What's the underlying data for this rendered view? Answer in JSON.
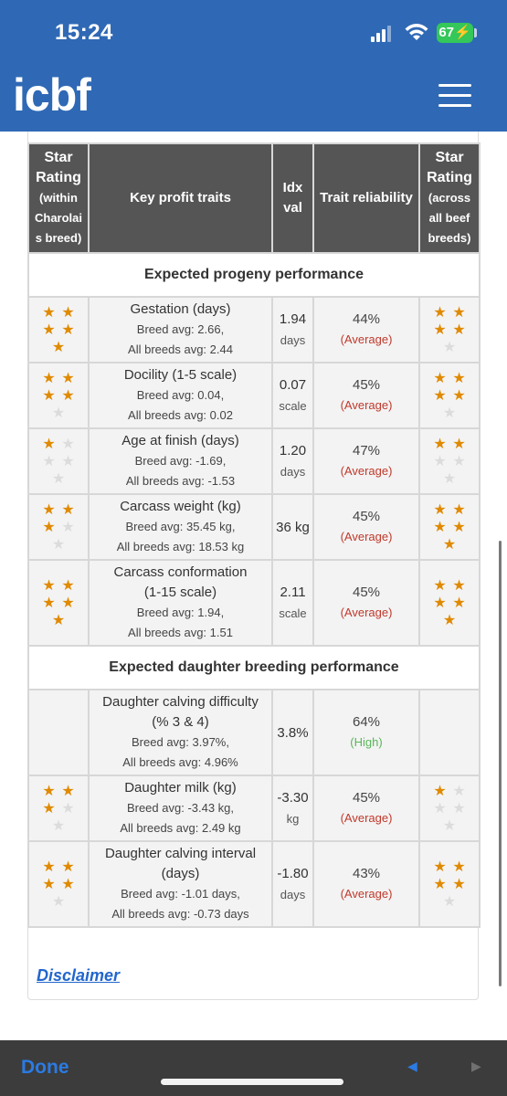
{
  "status_bar": {
    "time": "15:24",
    "battery": "67"
  },
  "header": {
    "logo": "icbf"
  },
  "table": {
    "headers": {
      "star_within_line1": "Star",
      "star_within_line2": "Rating",
      "star_within_line3": "(within",
      "star_within_line4": "Charolai",
      "star_within_line5": "s breed)",
      "traits": "Key profit traits",
      "idx_line1": "Idx",
      "idx_line2": "val",
      "reliability": "Trait reliability",
      "star_across_line1": "Star",
      "star_across_line2": "Rating",
      "star_across_line3": "(across",
      "star_across_line4": "all beef",
      "star_across_line5": "breeds)"
    },
    "sections": [
      {
        "title": "Expected progeny performance",
        "rows": [
          {
            "name": "Gestation (days)",
            "name2": "",
            "breed_avg": "Breed avg: 2.66,",
            "all_avg": "All breeds avg: 2.44",
            "idx": "1.94",
            "unit": "days",
            "pct": "44%",
            "rel": "(Average)",
            "within_stars": 5,
            "across_stars": 4
          },
          {
            "name": "Docility (1-5 scale)",
            "name2": "",
            "breed_avg": "Breed avg: 0.04,",
            "all_avg": "All breeds avg: 0.02",
            "idx": "0.07",
            "unit": "scale",
            "pct": "45%",
            "rel": "(Average)",
            "within_stars": 4,
            "across_stars": 4
          },
          {
            "name": "Age at finish (days)",
            "name2": "",
            "breed_avg": "Breed avg: -1.69,",
            "all_avg": "All breeds avg: -1.53",
            "idx": "1.20",
            "unit": "days",
            "pct": "47%",
            "rel": "(Average)",
            "within_stars": 1,
            "across_stars": 2
          },
          {
            "name": "Carcass weight (kg)",
            "name2": "",
            "breed_avg": "Breed avg: 35.45 kg,",
            "all_avg": "All breeds avg: 18.53 kg",
            "idx": "36 kg",
            "unit": "",
            "pct": "45%",
            "rel": "(Average)",
            "within_stars": 3,
            "across_stars": 5
          },
          {
            "name": "Carcass conformation",
            "name2": "(1-15 scale)",
            "breed_avg": "Breed avg: 1.94,",
            "all_avg": "All breeds avg: 1.51",
            "idx": "2.11",
            "unit": "scale",
            "pct": "45%",
            "rel": "(Average)",
            "within_stars": 5,
            "across_stars": 5
          }
        ]
      },
      {
        "title": "Expected daughter breeding performance",
        "rows": [
          {
            "name": "Daughter calving difficulty",
            "name2": "(% 3 & 4)",
            "breed_avg": "Breed avg: 3.97%,",
            "all_avg": "All breeds avg: 4.96%",
            "idx": "3.8%",
            "unit": "",
            "pct": "64%",
            "rel": "(High)",
            "within_stars": 0,
            "across_stars": 0
          },
          {
            "name": "Daughter milk (kg)",
            "name2": "",
            "breed_avg": "Breed avg: -3.43 kg,",
            "all_avg": "All breeds avg: 2.49 kg",
            "idx": "-3.30",
            "unit": "kg",
            "pct": "45%",
            "rel": "(Average)",
            "within_stars": 3,
            "across_stars": 1
          },
          {
            "name": "Daughter calving interval",
            "name2": "(days)",
            "breed_avg": "Breed avg: -1.01 days,",
            "all_avg": "All breeds avg: -0.73 days",
            "idx": "-1.80",
            "unit": "days",
            "pct": "43%",
            "rel": "(Average)",
            "within_stars": 4,
            "across_stars": 4
          }
        ]
      }
    ]
  },
  "disclaimer": "Disclaimer",
  "toolbar": {
    "done": "Done"
  },
  "colors": {
    "header_bg": "#2f69b5",
    "table_header_bg": "#555555",
    "star_on": "#e08a00",
    "star_off": "#dcdcdc",
    "average": "#c0392b",
    "high": "#5ab55a",
    "link": "#2266cc"
  }
}
